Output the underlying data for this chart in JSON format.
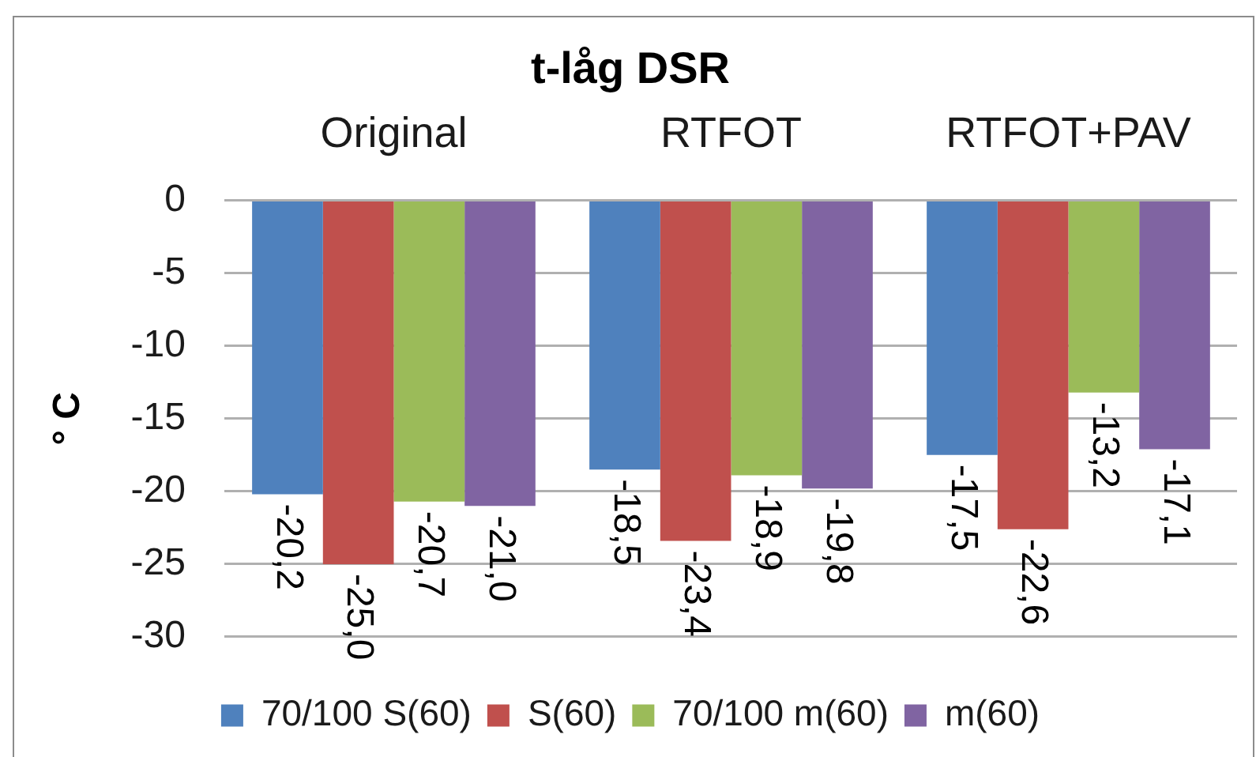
{
  "chart_data": {
    "type": "bar",
    "title": "t-låg DSR",
    "ylabel": "° C",
    "categories": [
      "Original",
      "RTFOT",
      "RTFOT+PAV"
    ],
    "series": [
      {
        "name": "70/100 S(60)",
        "color": "#4f81bd",
        "values": [
          -20.2,
          -18.5,
          -17.5
        ],
        "value_labels": [
          "-20,2",
          "-18,5",
          "-17,5"
        ]
      },
      {
        "name": "S(60)",
        "color": "#c0504d",
        "values": [
          -25.0,
          -23.4,
          -22.6
        ],
        "value_labels": [
          "-25,0",
          "-23,4",
          "-22,6"
        ]
      },
      {
        "name": "70/100 m(60)",
        "color": "#9bbb59",
        "values": [
          -20.7,
          -18.9,
          -13.2
        ],
        "value_labels": [
          "-20,7",
          "-18,9",
          "-13,2"
        ]
      },
      {
        "name": "m(60)",
        "color": "#8064a2",
        "values": [
          -21.0,
          -19.8,
          -17.1
        ],
        "value_labels": [
          "-21,0",
          "-19,8",
          "-17,1"
        ]
      }
    ],
    "ylim": [
      -30,
      0
    ],
    "yticks": [
      -30,
      -25,
      -20,
      -15,
      -10,
      -5,
      0
    ],
    "grid": "y",
    "legend": "bottom"
  }
}
